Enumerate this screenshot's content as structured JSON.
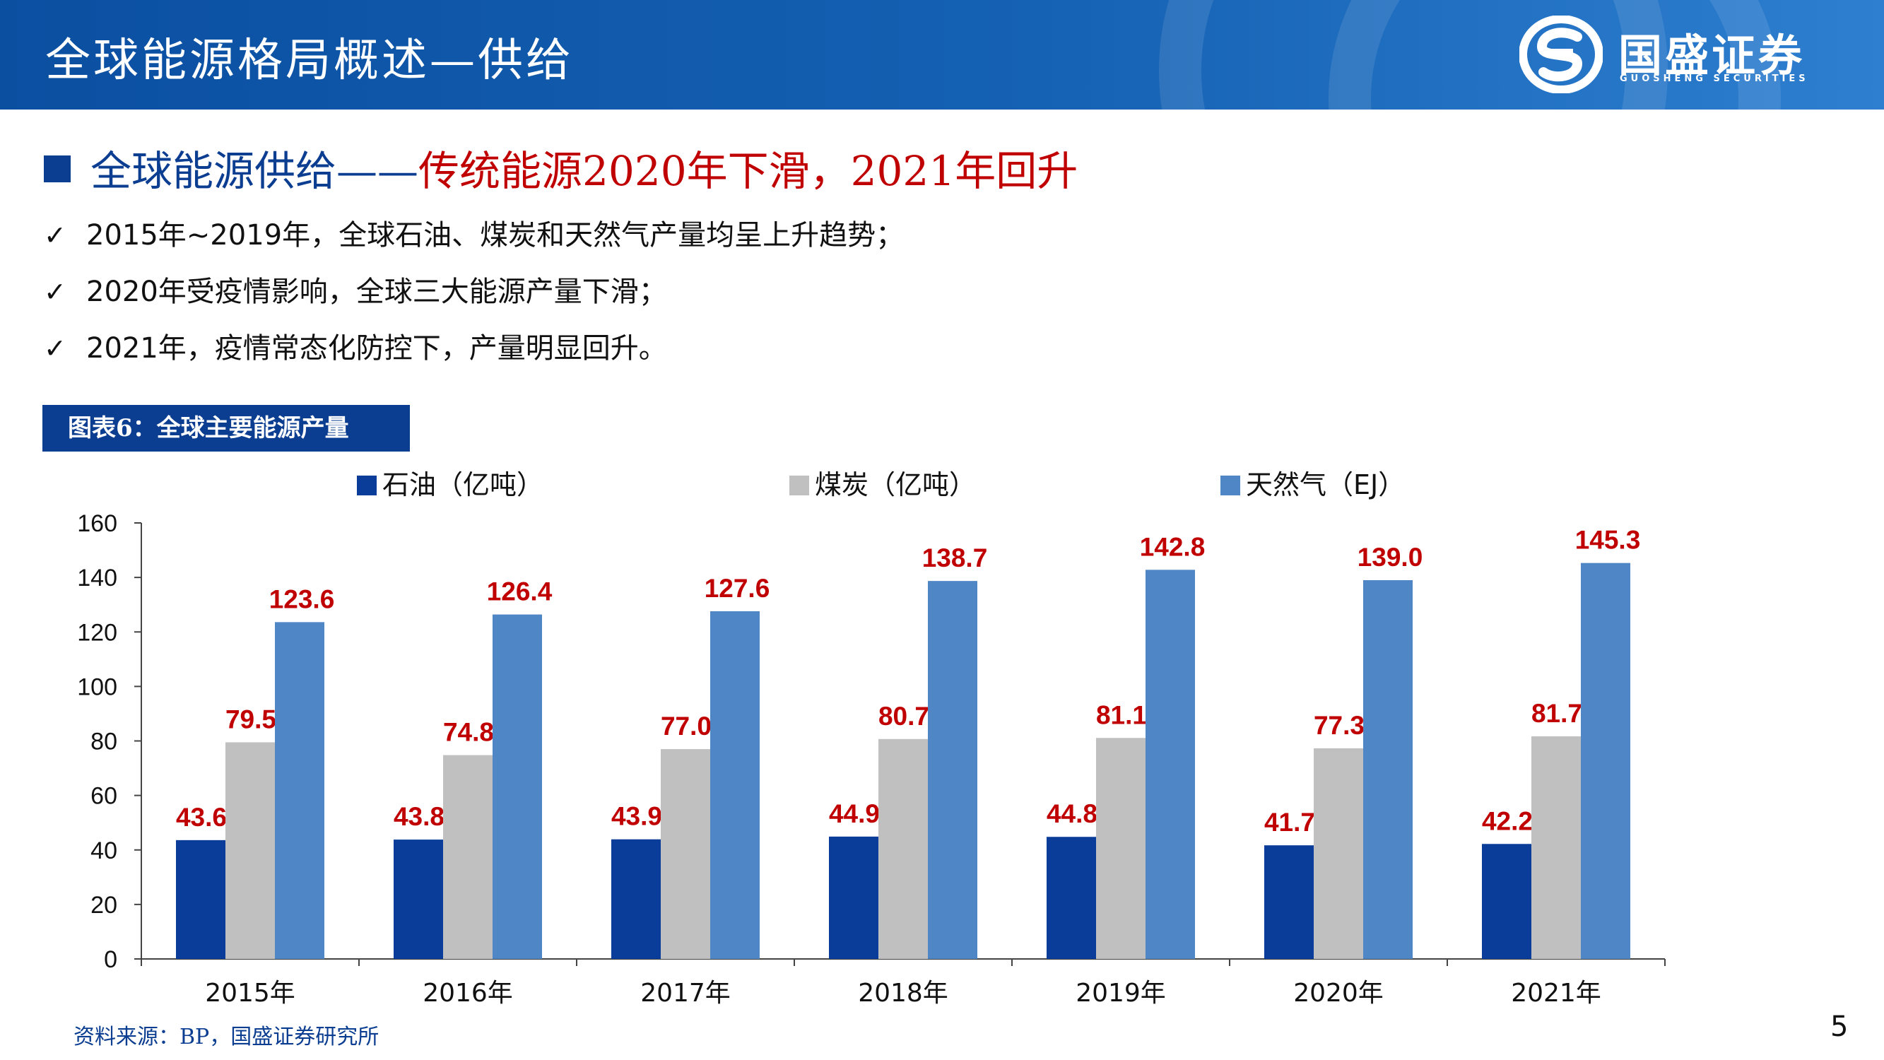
{
  "header": {
    "title": "全球能源格局概述—供给",
    "logo_text": "国盛证券",
    "logo_sub": "GUOSHENG SECURITIES"
  },
  "section": {
    "title_part1": "全球能源供给——",
    "title_part2": "传统能源2020年下滑，2021年回升"
  },
  "bullets": [
    {
      "check": "✓",
      "text": "2015年~2019年，全球石油、煤炭和天然气产量均呈上升趋势；"
    },
    {
      "check": "✓",
      "text": "2020年受疫情影响，全球三大能源产量下滑；"
    },
    {
      "check": "✓",
      "text": "2021年，疫情常态化防控下，产量明显回升。"
    }
  ],
  "figure": {
    "label": "图表6：全球主要能源产量"
  },
  "source": "资料来源：BP，国盛证券研究所",
  "page_number": "5",
  "colors": {
    "oil": "#0a3d99",
    "coal": "#c0c0c0",
    "gas": "#4f86c6",
    "data_label": "#c00000"
  },
  "chart_data": {
    "type": "bar",
    "categories": [
      "2015年",
      "2016年",
      "2017年",
      "2018年",
      "2019年",
      "2020年",
      "2021年"
    ],
    "series": [
      {
        "name": "石油（亿吨）",
        "values": [
          43.6,
          43.8,
          43.9,
          44.9,
          44.8,
          41.7,
          42.2
        ]
      },
      {
        "name": "煤炭（亿吨）",
        "values": [
          79.5,
          74.8,
          77.0,
          80.7,
          81.1,
          77.3,
          81.7
        ]
      },
      {
        "name": "天然气（EJ）",
        "values": [
          123.6,
          126.4,
          127.6,
          138.7,
          142.8,
          139.0,
          145.3
        ]
      }
    ],
    "ylim": [
      0,
      160
    ],
    "yticks": [
      0,
      20,
      40,
      60,
      80,
      100,
      120,
      140,
      160
    ],
    "legend_position": "top",
    "grid": false
  }
}
